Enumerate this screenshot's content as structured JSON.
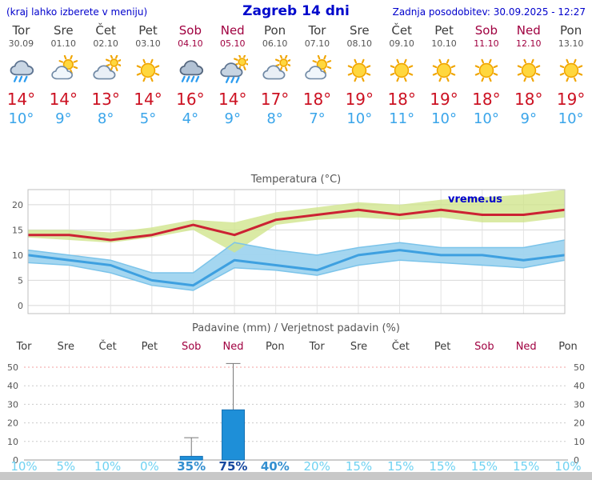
{
  "header": {
    "left_note": "(kraj lahko izberete v meniju)",
    "title": "Zagreb 14 dni",
    "updated": "Zadnja posodobitev: 30.09.2025 - 12:27"
  },
  "colors": {
    "link_blue": "#0000cc",
    "weekend": "#a00040",
    "weekday": "#3c3c3c",
    "max_temp": "#cc1122",
    "min_temp": "#3aa5ea",
    "bar_fill": "#1e8fd8",
    "bar_stroke": "#1470b4",
    "percent_scale": {
      "light": "#6fd2f2",
      "mid": "#338fd0",
      "dark": "#15479f"
    }
  },
  "days": [
    {
      "name": "Tor",
      "date": "30.09",
      "icon": "rain",
      "max": "14",
      "min": "10",
      "weekend": false
    },
    {
      "name": "Sre",
      "date": "01.10",
      "icon": "partly-cloudy",
      "max": "14",
      "min": "9",
      "weekend": false
    },
    {
      "name": "Čet",
      "date": "02.10",
      "icon": "mostly-cloudy",
      "max": "13",
      "min": "8",
      "weekend": false
    },
    {
      "name": "Pet",
      "date": "03.10",
      "icon": "sunny",
      "max": "14",
      "min": "5",
      "weekend": false
    },
    {
      "name": "Sob",
      "date": "04.10",
      "icon": "heavy-rain",
      "max": "16",
      "min": "4",
      "weekend": true
    },
    {
      "name": "Ned",
      "date": "05.10",
      "icon": "showers",
      "max": "14",
      "min": "9",
      "weekend": true
    },
    {
      "name": "Pon",
      "date": "06.10",
      "icon": "mostly-cloudy",
      "max": "17",
      "min": "8",
      "weekend": false
    },
    {
      "name": "Tor",
      "date": "07.10",
      "icon": "partly-cloudy",
      "max": "18",
      "min": "7",
      "weekend": false
    },
    {
      "name": "Sre",
      "date": "08.10",
      "icon": "sunny",
      "max": "19",
      "min": "10",
      "weekend": false
    },
    {
      "name": "Čet",
      "date": "09.10",
      "icon": "sunny",
      "max": "18",
      "min": "11",
      "weekend": false
    },
    {
      "name": "Pet",
      "date": "10.10",
      "icon": "sunny",
      "max": "19",
      "min": "10",
      "weekend": false
    },
    {
      "name": "Sob",
      "date": "11.10",
      "icon": "sunny",
      "max": "18",
      "min": "10",
      "weekend": true
    },
    {
      "name": "Ned",
      "date": "12.10",
      "icon": "sunny",
      "max": "18",
      "min": "9",
      "weekend": true
    },
    {
      "name": "Pon",
      "date": "13.10",
      "icon": "sunny",
      "max": "19",
      "min": "10",
      "weekend": false
    }
  ],
  "chart_data": [
    {
      "type": "line",
      "title": "Temperatura (°C)",
      "watermark": "vreme.us",
      "categories": [
        "30.09",
        "01.10",
        "02.10",
        "03.10",
        "04.10",
        "05.10",
        "06.10",
        "07.10",
        "08.10",
        "09.10",
        "10.10",
        "11.10",
        "12.10",
        "13.10"
      ],
      "series": [
        {
          "name": "max-temp",
          "color": "#cc2233",
          "values": [
            14,
            14,
            13,
            14,
            16,
            14,
            17,
            18,
            19,
            18,
            19,
            18,
            18,
            19
          ]
        },
        {
          "name": "min-temp",
          "color": "#3ea0e0",
          "values": [
            10,
            9,
            8,
            5,
            4,
            9,
            8,
            7,
            10,
            11,
            10,
            10,
            9,
            10
          ]
        }
      ],
      "bands": {
        "max_high": [
          15,
          15,
          14.5,
          15.5,
          17,
          16.5,
          18.5,
          19.5,
          20.5,
          20,
          21,
          21.5,
          22,
          23
        ],
        "max_low": [
          13.5,
          13,
          12.5,
          13.5,
          15,
          10.5,
          16,
          17,
          17.5,
          17,
          17.5,
          16.5,
          16.5,
          17.5
        ],
        "min_high": [
          11,
          10,
          9,
          6.5,
          6.5,
          12.5,
          11,
          10,
          11.5,
          12.5,
          11.5,
          11.5,
          11.5,
          13
        ],
        "min_low": [
          8.5,
          8,
          6.5,
          4,
          3,
          7.5,
          7,
          6,
          8,
          9,
          8.5,
          8,
          7.5,
          9
        ]
      },
      "yticks": [
        0,
        5,
        10,
        15,
        20
      ],
      "ylim": [
        -1.6,
        23
      ],
      "grid": true,
      "legend": "none"
    },
    {
      "type": "bar",
      "title": "Padavine (mm) / Verjetnost padavin (%)",
      "categories": [
        "Tor",
        "Sre",
        "Čet",
        "Pet",
        "Sob",
        "Ned",
        "Pon",
        "Tor",
        "Sre",
        "Čet",
        "Pet",
        "Sob",
        "Ned",
        "Pon"
      ],
      "weekend": [
        false,
        false,
        false,
        false,
        true,
        true,
        false,
        false,
        false,
        false,
        false,
        true,
        true,
        false
      ],
      "values": [
        0,
        0,
        0,
        0,
        2,
        27,
        0,
        0,
        0,
        0,
        0,
        0,
        0,
        0
      ],
      "whisker_high": [
        0,
        0,
        0,
        0,
        12,
        52,
        0,
        0,
        0,
        0,
        0,
        0,
        0,
        0
      ],
      "whisker_low": [
        0,
        0,
        0,
        0,
        0,
        4,
        0,
        0,
        0,
        0,
        0,
        0,
        0,
        0
      ],
      "percent": [
        10,
        5,
        10,
        0,
        35,
        75,
        40,
        20,
        15,
        15,
        15,
        15,
        15,
        10
      ],
      "yticks": [
        0,
        10,
        20,
        30,
        40,
        50
      ],
      "ylim": [
        0,
        53
      ],
      "grid": true,
      "legend": "none"
    }
  ]
}
